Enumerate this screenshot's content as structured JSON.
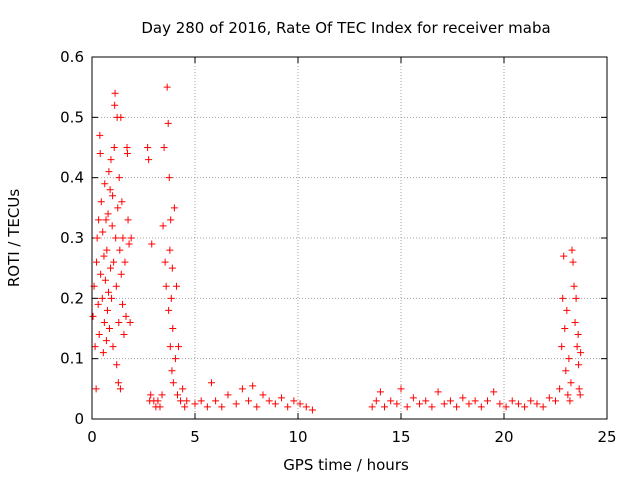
{
  "chart_data": {
    "type": "scatter",
    "title": "Day 280 of 2016, Rate Of TEC Index for receiver maba",
    "xlabel": "GPS time / hours",
    "ylabel": "ROTI / TECUs",
    "xlim": [
      0,
      25
    ],
    "ylim": [
      0,
      0.6
    ],
    "xticks": [
      0,
      5,
      10,
      15,
      20,
      25
    ],
    "xtick_labels": [
      "0",
      "5",
      "10",
      "15",
      "20",
      "25"
    ],
    "yticks": [
      0,
      0.1,
      0.2,
      0.3,
      0.4,
      0.5,
      0.6
    ],
    "ytick_labels": [
      "0",
      "0.1",
      "0.2",
      "0.3",
      "0.4",
      "0.5",
      "0.6"
    ],
    "grid": true,
    "marker": "+",
    "color": "#ff0000",
    "series": [
      {
        "name": "ROTI",
        "points": [
          [
            0.05,
            0.17
          ],
          [
            0.1,
            0.22
          ],
          [
            0.15,
            0.12
          ],
          [
            0.2,
            0.05
          ],
          [
            0.22,
            0.26
          ],
          [
            0.25,
            0.3
          ],
          [
            0.3,
            0.19
          ],
          [
            0.32,
            0.33
          ],
          [
            0.35,
            0.14
          ],
          [
            0.38,
            0.47
          ],
          [
            0.4,
            0.44
          ],
          [
            0.42,
            0.24
          ],
          [
            0.45,
            0.36
          ],
          [
            0.5,
            0.2
          ],
          [
            0.52,
            0.31
          ],
          [
            0.55,
            0.11
          ],
          [
            0.58,
            0.27
          ],
          [
            0.6,
            0.16
          ],
          [
            0.62,
            0.39
          ],
          [
            0.65,
            0.23
          ],
          [
            0.68,
            0.33
          ],
          [
            0.7,
            0.13
          ],
          [
            0.72,
            0.28
          ],
          [
            0.75,
            0.18
          ],
          [
            0.78,
            0.34
          ],
          [
            0.8,
            0.21
          ],
          [
            0.82,
            0.41
          ],
          [
            0.85,
            0.15
          ],
          [
            0.88,
            0.38
          ],
          [
            0.9,
            0.25
          ],
          [
            0.92,
            0.43
          ],
          [
            0.95,
            0.2
          ],
          [
            0.98,
            0.32
          ],
          [
            1.0,
            0.37
          ],
          [
            1.02,
            0.12
          ],
          [
            1.05,
            0.26
          ],
          [
            1.08,
            0.45
          ],
          [
            1.1,
            0.52
          ],
          [
            1.12,
            0.54
          ],
          [
            1.15,
            0.3
          ],
          [
            1.18,
            0.22
          ],
          [
            1.2,
            0.09
          ],
          [
            1.22,
            0.5
          ],
          [
            1.25,
            0.35
          ],
          [
            1.28,
            0.06
          ],
          [
            1.3,
            0.16
          ],
          [
            1.32,
            0.4
          ],
          [
            1.35,
            0.28
          ],
          [
            1.38,
            0.05
          ],
          [
            1.4,
            0.5
          ],
          [
            1.42,
            0.24
          ],
          [
            1.45,
            0.36
          ],
          [
            1.48,
            0.19
          ],
          [
            1.5,
            0.3
          ],
          [
            1.55,
            0.14
          ],
          [
            1.6,
            0.26
          ],
          [
            1.65,
            0.17
          ],
          [
            1.7,
            0.45
          ],
          [
            1.72,
            0.44
          ],
          [
            1.75,
            0.33
          ],
          [
            1.8,
            0.29
          ],
          [
            1.85,
            0.16
          ],
          [
            1.9,
            0.3
          ],
          [
            2.7,
            0.45
          ],
          [
            2.75,
            0.43
          ],
          [
            2.8,
            0.03
          ],
          [
            2.85,
            0.04
          ],
          [
            2.9,
            0.29
          ],
          [
            3.0,
            0.03
          ],
          [
            3.1,
            0.02
          ],
          [
            3.2,
            0.03
          ],
          [
            3.3,
            0.02
          ],
          [
            3.4,
            0.04
          ],
          [
            3.45,
            0.32
          ],
          [
            3.5,
            0.45
          ],
          [
            3.55,
            0.26
          ],
          [
            3.6,
            0.22
          ],
          [
            3.65,
            0.55
          ],
          [
            3.7,
            0.49
          ],
          [
            3.72,
            0.18
          ],
          [
            3.75,
            0.4
          ],
          [
            3.78,
            0.28
          ],
          [
            3.8,
            0.12
          ],
          [
            3.82,
            0.33
          ],
          [
            3.85,
            0.2
          ],
          [
            3.88,
            0.08
          ],
          [
            3.9,
            0.25
          ],
          [
            3.92,
            0.15
          ],
          [
            3.95,
            0.06
          ],
          [
            4.0,
            0.35
          ],
          [
            4.05,
            0.1
          ],
          [
            4.1,
            0.22
          ],
          [
            4.15,
            0.04
          ],
          [
            4.2,
            0.12
          ],
          [
            4.3,
            0.03
          ],
          [
            4.4,
            0.05
          ],
          [
            4.5,
            0.02
          ],
          [
            4.6,
            0.03
          ],
          [
            5.0,
            0.025
          ],
          [
            5.3,
            0.03
          ],
          [
            5.6,
            0.02
          ],
          [
            5.8,
            0.06
          ],
          [
            6.0,
            0.03
          ],
          [
            6.3,
            0.02
          ],
          [
            6.6,
            0.04
          ],
          [
            7.0,
            0.025
          ],
          [
            7.3,
            0.05
          ],
          [
            7.6,
            0.03
          ],
          [
            7.8,
            0.055
          ],
          [
            8.0,
            0.02
          ],
          [
            8.3,
            0.04
          ],
          [
            8.6,
            0.03
          ],
          [
            8.9,
            0.025
          ],
          [
            9.2,
            0.035
          ],
          [
            9.5,
            0.02
          ],
          [
            9.8,
            0.03
          ],
          [
            10.1,
            0.025
          ],
          [
            10.4,
            0.02
          ],
          [
            10.7,
            0.015
          ],
          [
            13.6,
            0.02
          ],
          [
            13.8,
            0.03
          ],
          [
            14.0,
            0.045
          ],
          [
            14.2,
            0.02
          ],
          [
            14.5,
            0.03
          ],
          [
            14.8,
            0.025
          ],
          [
            15.0,
            0.05
          ],
          [
            15.3,
            0.02
          ],
          [
            15.6,
            0.035
          ],
          [
            15.9,
            0.025
          ],
          [
            16.2,
            0.03
          ],
          [
            16.5,
            0.02
          ],
          [
            16.8,
            0.045
          ],
          [
            17.1,
            0.025
          ],
          [
            17.4,
            0.03
          ],
          [
            17.7,
            0.02
          ],
          [
            18.0,
            0.035
          ],
          [
            18.3,
            0.025
          ],
          [
            18.6,
            0.03
          ],
          [
            18.9,
            0.02
          ],
          [
            19.2,
            0.03
          ],
          [
            19.5,
            0.045
          ],
          [
            19.8,
            0.025
          ],
          [
            20.1,
            0.02
          ],
          [
            20.4,
            0.03
          ],
          [
            20.7,
            0.025
          ],
          [
            21.0,
            0.02
          ],
          [
            21.3,
            0.03
          ],
          [
            21.6,
            0.025
          ],
          [
            21.9,
            0.02
          ],
          [
            22.2,
            0.035
          ],
          [
            22.5,
            0.03
          ],
          [
            22.7,
            0.05
          ],
          [
            22.8,
            0.12
          ],
          [
            22.85,
            0.2
          ],
          [
            22.9,
            0.27
          ],
          [
            22.95,
            0.15
          ],
          [
            23.0,
            0.08
          ],
          [
            23.05,
            0.18
          ],
          [
            23.1,
            0.04
          ],
          [
            23.15,
            0.1
          ],
          [
            23.2,
            0.03
          ],
          [
            23.25,
            0.06
          ],
          [
            23.3,
            0.28
          ],
          [
            23.35,
            0.26
          ],
          [
            23.4,
            0.22
          ],
          [
            23.45,
            0.16
          ],
          [
            23.5,
            0.2
          ],
          [
            23.55,
            0.12
          ],
          [
            23.6,
            0.14
          ],
          [
            23.62,
            0.09
          ],
          [
            23.65,
            0.05
          ],
          [
            23.7,
            0.04
          ],
          [
            23.72,
            0.11
          ]
        ]
      }
    ]
  }
}
